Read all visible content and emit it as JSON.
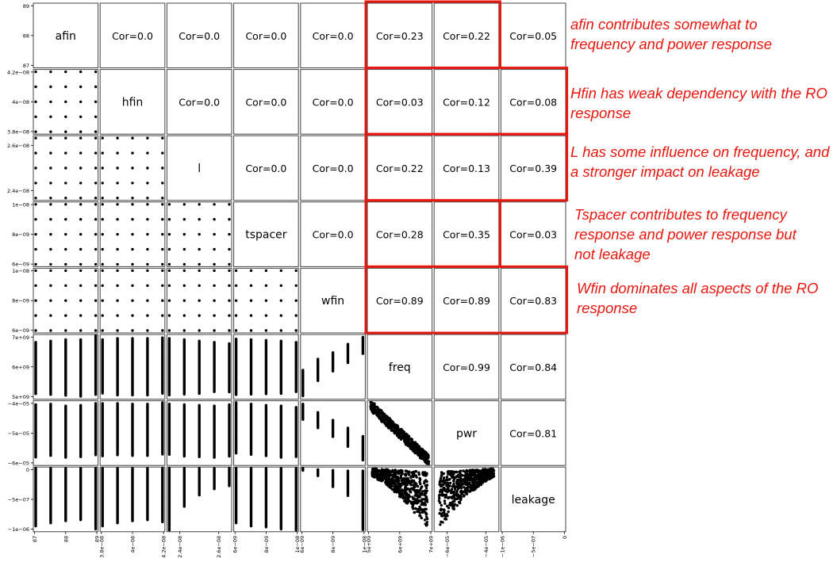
{
  "chart_data": {
    "type": "scatter",
    "variables": [
      "afin",
      "hfin",
      "l",
      "tspacer",
      "wfin",
      "freq",
      "pwr",
      "leakage"
    ],
    "correlations": [
      {
        "row": "afin",
        "values": {
          "hfin": 0.0,
          "l": 0.0,
          "tspacer": 0.0,
          "wfin": 0.0,
          "freq": 0.23,
          "pwr": 0.22,
          "leakage": 0.05
        }
      },
      {
        "row": "hfin",
        "values": {
          "l": 0.0,
          "tspacer": 0.0,
          "wfin": 0.0,
          "freq": 0.03,
          "pwr": 0.12,
          "leakage": 0.08
        }
      },
      {
        "row": "l",
        "values": {
          "tspacer": 0.0,
          "wfin": 0.0,
          "freq": 0.22,
          "pwr": 0.13,
          "leakage": 0.39
        }
      },
      {
        "row": "tspacer",
        "values": {
          "wfin": 0.0,
          "freq": 0.28,
          "pwr": 0.35,
          "leakage": 0.03
        }
      },
      {
        "row": "wfin",
        "values": {
          "freq": 0.89,
          "pwr": 0.89,
          "leakage": 0.83
        }
      },
      {
        "row": "freq",
        "values": {
          "pwr": 0.99,
          "leakage": 0.84
        }
      },
      {
        "row": "pwr",
        "values": {
          "leakage": 0.81
        }
      }
    ],
    "upper_labels": [
      [
        "afin",
        "Cor=0.0",
        "Cor=0.0",
        "Cor=0.0",
        "Cor=0.0",
        "Cor=0.23",
        "Cor=0.22",
        "Cor=0.05"
      ],
      [
        "",
        "hfin",
        "Cor=0.0",
        "Cor=0.0",
        "Cor=0.0",
        "Cor=0.03",
        "Cor=0.12",
        "Cor=0.08"
      ],
      [
        "",
        "",
        "l",
        "Cor=0.0",
        "Cor=0.0",
        "Cor=0.22",
        "Cor=0.13",
        "Cor=0.39"
      ],
      [
        "",
        "",
        "",
        "tspacer",
        "Cor=0.0",
        "Cor=0.28",
        "Cor=0.35",
        "Cor=0.03"
      ],
      [
        "",
        "",
        "",
        "",
        "wfin",
        "Cor=0.89",
        "Cor=0.89",
        "Cor=0.83"
      ],
      [
        "",
        "",
        "",
        "",
        "",
        "freq",
        "Cor=0.99",
        "Cor=0.84"
      ],
      [
        "",
        "",
        "",
        "",
        "",
        "",
        "pwr",
        "Cor=0.81"
      ],
      [
        "",
        "",
        "",
        "",
        "",
        "",
        "",
        "leakage"
      ]
    ],
    "y_ticks": [
      [
        "89",
        "88",
        "87"
      ],
      [
        "4.2e−08",
        "4e−08",
        "3.8e−08"
      ],
      [
        "2.6e−08",
        "2.4e−08"
      ],
      [
        "1e−08",
        "8e−09",
        "6e−09"
      ],
      [
        "1e−08",
        "8e−09",
        "6e−09"
      ],
      [
        "7e+09",
        "6e+09",
        "5e+09"
      ],
      [
        "−4e−05",
        "−5e−05",
        "−6e−05"
      ],
      [
        "0",
        "−5e−07",
        "−1e−06"
      ]
    ],
    "x_ticks": [
      [
        "87",
        "88",
        "89"
      ],
      [
        "3.8e−08",
        "4e−08",
        "4.2e−08"
      ],
      [
        "2.4e−08",
        "2.6e−08"
      ],
      [
        "6e−09",
        "8e−09",
        "1e−08"
      ],
      [
        "6e−09",
        "8e−09",
        "1e−08"
      ],
      [
        "5e+09",
        "6e+09",
        "7e+09"
      ],
      [
        "−6e−05",
        "−4e−05"
      ],
      [
        "−1e−06",
        "−5e−07",
        "0"
      ]
    ],
    "highlight_color": "#e8170f",
    "point_color": "#000000"
  },
  "annotations": [
    "afin contributes somewhat to frequency and power response",
    "Hfin has weak dependency with the RO response",
    "L has some influence on frequency, and a stronger impact on leakage",
    "Tspacer contributes to frequency response and power response but not leakage",
    "Wfin dominates all aspects of the RO response"
  ]
}
